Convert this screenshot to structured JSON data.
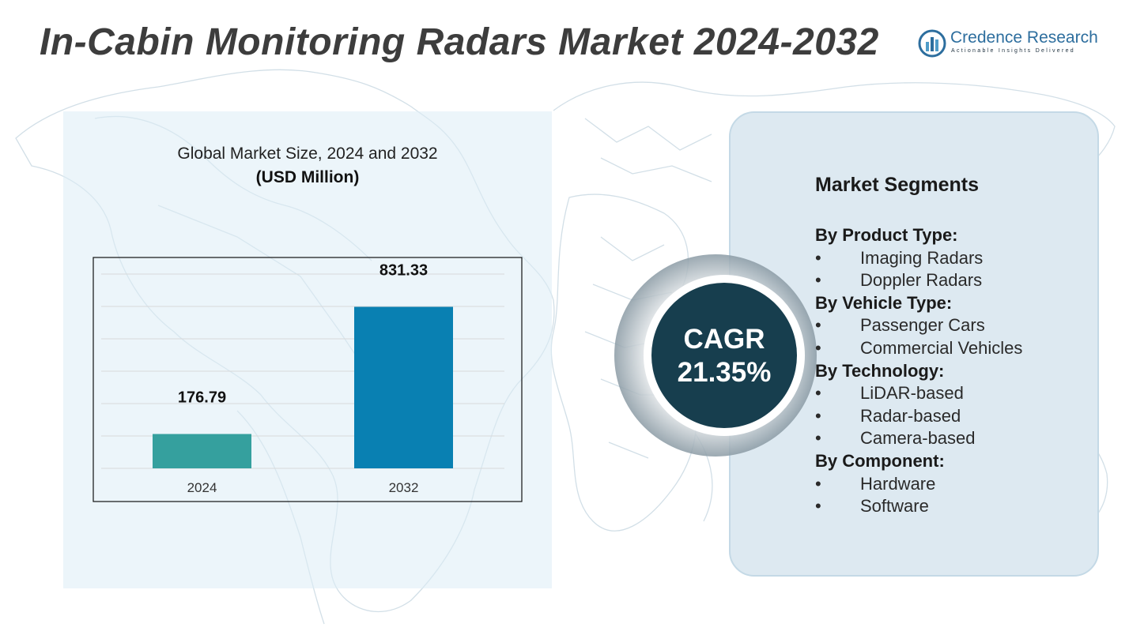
{
  "title": "In-Cabin Monitoring Radars Market 2024-2032",
  "logo": {
    "name_part1": "Credence",
    "name_part2": " Research",
    "tagline": "Actionable Insights Delivered",
    "icon": "bar-chart-circle-icon"
  },
  "chart_data": {
    "type": "bar",
    "title": "Global Market Size, 2024 and 2032",
    "subtitle": "(USD Million)",
    "categories": [
      "2024",
      "2032"
    ],
    "values": [
      176.79,
      831.33
    ],
    "value_labels": [
      "176.79",
      "831.33"
    ],
    "colors": [
      "#35a09e",
      "#0980b2"
    ],
    "ylim": [
      0,
      1000
    ],
    "grid": true
  },
  "cagr": {
    "label": "CAGR",
    "value": "21.35%"
  },
  "segments": {
    "title": "Market Segments",
    "groups": [
      {
        "title": "By Product Type:",
        "items": [
          "Imaging Radars",
          "Doppler Radars"
        ]
      },
      {
        "title": "By Vehicle Type:",
        "items": [
          "Passenger Cars",
          "Commercial Vehicles"
        ]
      },
      {
        "title": "By Technology:",
        "items": [
          "LiDAR-based",
          "Radar-based",
          "Camera-based"
        ]
      },
      {
        "title": "By Component:",
        "items": [
          "Hardware",
          "Software"
        ]
      }
    ],
    "bullet": "•"
  },
  "colors": {
    "title": "#3d3d3d",
    "cagr_circle": "#173e4e",
    "panel": "#dde9f1"
  }
}
